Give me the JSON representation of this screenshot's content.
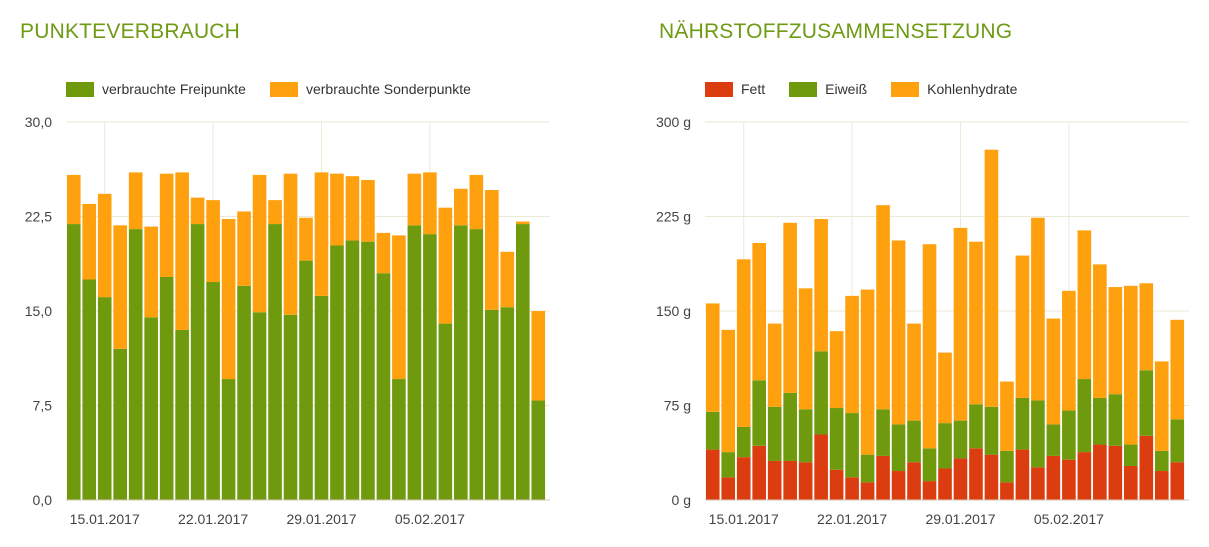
{
  "colors": {
    "title": "#6e9a14",
    "green": "#6f9a0e",
    "orange": "#ffa10e",
    "red": "#dc3d10",
    "grid": "#ece9d6"
  },
  "chart_data": [
    {
      "type": "bar",
      "stacked": true,
      "title": "PUNKTEVERBRAUCH",
      "legend_position": "top-left",
      "grid": true,
      "ylim": [
        0,
        30
      ],
      "yticks": [
        "0,0",
        "7,5",
        "15,0",
        "22,5",
        "30,0"
      ],
      "xtick_labels": [
        {
          "index": 2,
          "label": "15.01.2017"
        },
        {
          "index": 9,
          "label": "22.01.2017"
        },
        {
          "index": 16,
          "label": "29.01.2017"
        },
        {
          "index": 23,
          "label": "05.02.2017"
        }
      ],
      "series": [
        {
          "name": "verbrauchte Freipunkte",
          "color_key": "green",
          "values": [
            21.9,
            17.5,
            16.1,
            12.0,
            21.5,
            14.5,
            17.7,
            13.5,
            21.9,
            17.3,
            9.6,
            17.0,
            14.9,
            21.9,
            14.7,
            19.0,
            16.2,
            20.2,
            20.6,
            20.5,
            18.0,
            9.6,
            21.8,
            21.1,
            14.0,
            21.8,
            21.5,
            15.1,
            15.3,
            21.9,
            7.9
          ]
        },
        {
          "name": "verbrauchte Sonderpunkte",
          "color_key": "orange",
          "values": [
            3.9,
            6.0,
            8.2,
            9.8,
            4.5,
            7.2,
            8.2,
            12.5,
            2.1,
            6.5,
            12.7,
            5.9,
            10.9,
            1.9,
            11.2,
            3.4,
            9.8,
            5.7,
            5.1,
            4.9,
            3.2,
            11.4,
            4.1,
            4.9,
            9.2,
            2.9,
            4.3,
            9.5,
            4.4,
            0.2,
            7.1
          ]
        }
      ]
    },
    {
      "type": "bar",
      "stacked": true,
      "title": "NÄHRSTOFFZUSAMMENSETZUNG",
      "legend_position": "top-left",
      "grid": true,
      "ylim": [
        0,
        300
      ],
      "yticks": [
        "0 g",
        "75 g",
        "150 g",
        "225 g",
        "300 g"
      ],
      "xtick_labels": [
        {
          "index": 2,
          "label": "15.01.2017"
        },
        {
          "index": 9,
          "label": "22.01.2017"
        },
        {
          "index": 16,
          "label": "29.01.2017"
        },
        {
          "index": 23,
          "label": "05.02.2017"
        }
      ],
      "series": [
        {
          "name": "Fett",
          "color_key": "red",
          "values": [
            40,
            18,
            34,
            43,
            31,
            31,
            30,
            52,
            24,
            18,
            14,
            35,
            23,
            30,
            15,
            25,
            33,
            41,
            36,
            14,
            40,
            26,
            35,
            32,
            38,
            44,
            43,
            27,
            51,
            23,
            30
          ]
        },
        {
          "name": "Eiweiß",
          "color_key": "green",
          "values": [
            30,
            20,
            24,
            52,
            43,
            54,
            42,
            66,
            49,
            51,
            22,
            37,
            37,
            33,
            26,
            36,
            30,
            35,
            38,
            25,
            41,
            53,
            25,
            39,
            58,
            37,
            41,
            17,
            52,
            16,
            34
          ]
        },
        {
          "name": "Kohlenhydrate",
          "color_key": "orange",
          "values": [
            86,
            97,
            133,
            109,
            66,
            135,
            96,
            105,
            61,
            93,
            131,
            162,
            146,
            77,
            162,
            56,
            153,
            129,
            204,
            55,
            113,
            145,
            84,
            95,
            118,
            106,
            85,
            126,
            69,
            71,
            79
          ]
        }
      ]
    }
  ]
}
